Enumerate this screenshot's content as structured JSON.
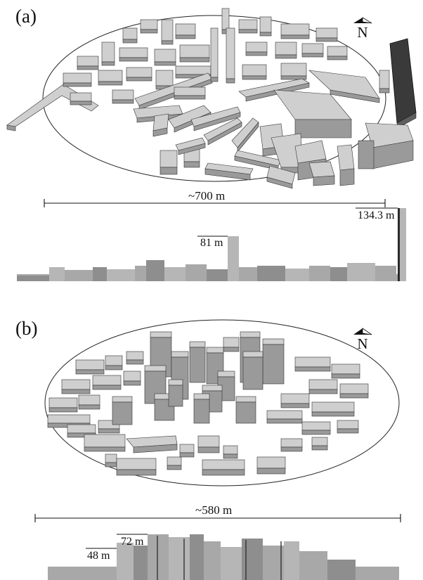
{
  "panels": [
    {
      "label": "(a)",
      "north_label": "N",
      "span_label": "~700 m",
      "heights": [
        {
          "label": "81 m",
          "value_m": 81
        },
        {
          "label": "134.3 m",
          "value_m": 134.3
        }
      ]
    },
    {
      "label": "(b)",
      "north_label": "N",
      "span_label": "~580 m",
      "heights": [
        {
          "label": "48 m",
          "value_m": 48
        },
        {
          "label": "72 m",
          "value_m": 72
        }
      ]
    }
  ],
  "colors": {
    "roof": "#cfcfcf",
    "wall_light": "#9c9c9c",
    "wall_dark": "#5a5a5a",
    "line": "#222222"
  }
}
